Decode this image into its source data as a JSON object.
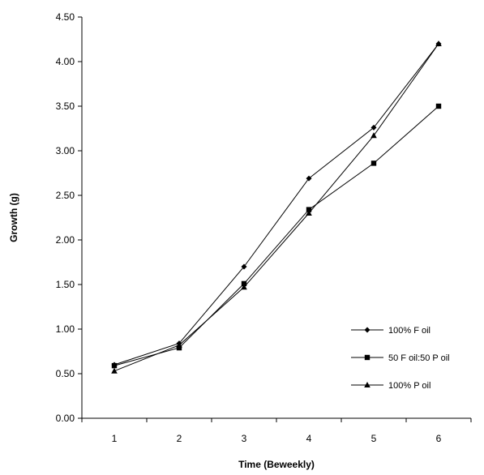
{
  "chart_data": {
    "type": "line",
    "title": "",
    "xlabel": "Time (Beweekly)",
    "ylabel": "Growth (g)",
    "x": [
      1,
      2,
      3,
      4,
      5,
      6
    ],
    "x_tick_labels": [
      "1",
      "2",
      "3",
      "4",
      "5",
      "6"
    ],
    "ylim": [
      0,
      4.5
    ],
    "y_ticks": [
      0,
      0.5,
      1.0,
      1.5,
      2.0,
      2.5,
      3.0,
      3.5,
      4.0,
      4.5
    ],
    "y_tick_labels": [
      "0.00",
      "0.50",
      "1.00",
      "1.50",
      "2.00",
      "2.50",
      "3.00",
      "3.50",
      "4.00",
      "4.50"
    ],
    "grid": false,
    "legend_position": "bottom-right",
    "series": [
      {
        "name": "100% F oil",
        "marker": "diamond",
        "color": "#000000",
        "values": [
          0.6,
          0.84,
          1.7,
          2.69,
          3.26,
          4.2
        ]
      },
      {
        "name": "50 F oil:50 P oil",
        "marker": "square",
        "color": "#000000",
        "values": [
          0.59,
          0.79,
          1.51,
          2.34,
          2.86,
          3.5
        ]
      },
      {
        "name": "100% P oil",
        "marker": "triangle",
        "color": "#000000",
        "values": [
          0.53,
          0.82,
          1.47,
          2.3,
          3.17,
          4.2
        ]
      }
    ]
  }
}
